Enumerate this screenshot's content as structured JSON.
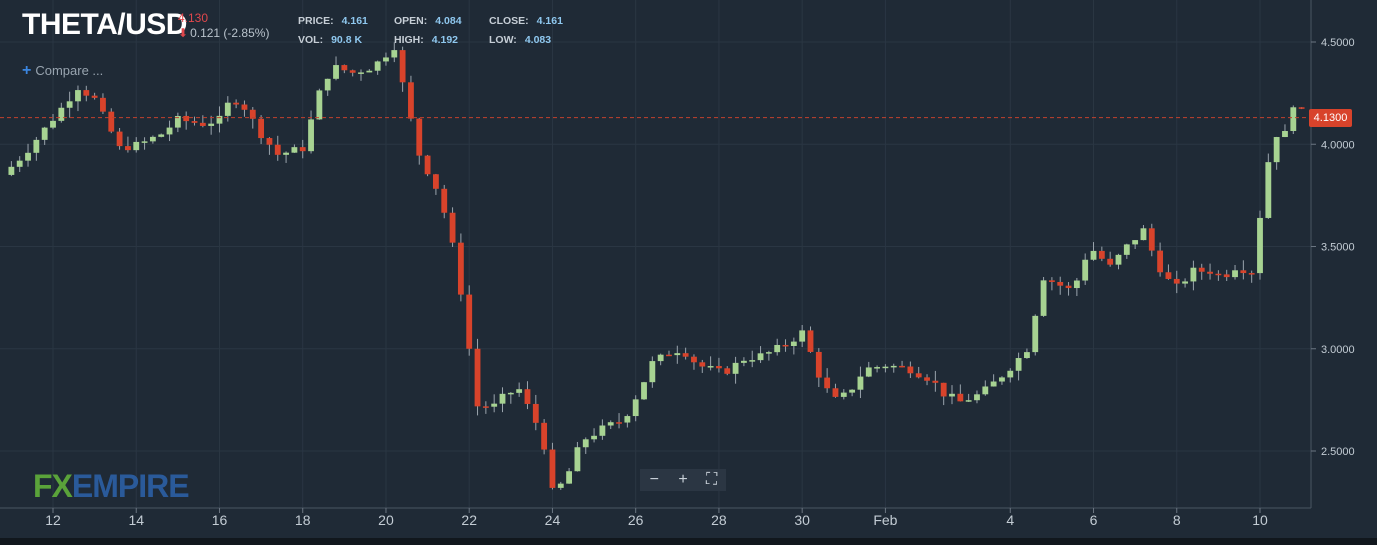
{
  "header": {
    "symbol": "THETA/USD",
    "change_price": "4.130",
    "change_value": "0.121 (-2.85%)",
    "price_label": "PRICE:",
    "price": "4.161",
    "open_label": "OPEN:",
    "open": "4.084",
    "close_label": "CLOSE:",
    "close": "4.161",
    "vol_label": "VOL:",
    "vol": "90.8 K",
    "high_label": "HIGH:",
    "high": "4.192",
    "low_label": "LOW:",
    "low": "4.083"
  },
  "compare_label": "Compare ...",
  "logo": {
    "fx": "FX",
    "rest": "EMPIRE"
  },
  "zoom": {
    "minus": "−",
    "plus": "+",
    "fit": "⛶"
  },
  "current_price_label": "4.1300",
  "colors": {
    "up": "#a7d392",
    "down": "#d8432b",
    "bg": "#1f2a36",
    "grid": "#2a3643",
    "axis_text": "#c3ccd4"
  },
  "chart_data": {
    "type": "candlestick",
    "title": "THETA/USD",
    "y_ticks": [
      "2.5000",
      "3.0000",
      "3.5000",
      "4.0000",
      "4.5000"
    ],
    "x_ticks": [
      {
        "label": "12",
        "day": 12
      },
      {
        "label": "14",
        "day": 14
      },
      {
        "label": "16",
        "day": 16
      },
      {
        "label": "18",
        "day": 18
      },
      {
        "label": "20",
        "day": 20
      },
      {
        "label": "22",
        "day": 22
      },
      {
        "label": "24",
        "day": 24
      },
      {
        "label": "26",
        "day": 26
      },
      {
        "label": "28",
        "day": 28
      },
      {
        "label": "30",
        "day": 30
      },
      {
        "label": "Feb",
        "day": 32
      },
      {
        "label": "4",
        "day": 35
      },
      {
        "label": "6",
        "day": 37
      },
      {
        "label": "8",
        "day": 39
      },
      {
        "label": "10",
        "day": 41
      }
    ],
    "ylim": [
      2.22,
      4.75
    ],
    "xlim": [
      11,
      42.3
    ],
    "current_price": 4.13,
    "keyframes": [
      [
        11.0,
        3.85
      ],
      [
        11.5,
        3.95
      ],
      [
        11.9,
        4.05
      ],
      [
        12.3,
        4.15
      ],
      [
        12.8,
        4.28
      ],
      [
        13.2,
        4.22
      ],
      [
        13.5,
        4.1
      ],
      [
        13.8,
        3.98
      ],
      [
        14.3,
        4.0
      ],
      [
        14.8,
        4.05
      ],
      [
        15.2,
        4.12
      ],
      [
        15.8,
        4.1
      ],
      [
        16.2,
        4.12
      ],
      [
        16.5,
        4.23
      ],
      [
        16.8,
        4.18
      ],
      [
        17.2,
        4.05
      ],
      [
        17.6,
        3.95
      ],
      [
        18.2,
        3.98
      ],
      [
        18.6,
        4.25
      ],
      [
        18.9,
        4.38
      ],
      [
        19.4,
        4.35
      ],
      [
        19.9,
        4.38
      ],
      [
        20.4,
        4.48
      ],
      [
        20.7,
        4.2
      ],
      [
        21.0,
        3.95
      ],
      [
        21.5,
        3.75
      ],
      [
        21.9,
        3.42
      ],
      [
        22.2,
        3.0
      ],
      [
        22.4,
        2.72
      ],
      [
        22.8,
        2.72
      ],
      [
        23.1,
        2.78
      ],
      [
        23.4,
        2.8
      ],
      [
        23.7,
        2.68
      ],
      [
        23.9,
        2.6
      ],
      [
        24.1,
        2.45
      ],
      [
        24.2,
        2.3
      ],
      [
        24.5,
        2.35
      ],
      [
        24.9,
        2.55
      ],
      [
        25.5,
        2.62
      ],
      [
        25.9,
        2.65
      ],
      [
        26.3,
        2.8
      ],
      [
        26.6,
        2.93
      ],
      [
        27.0,
        2.98
      ],
      [
        27.3,
        3.0
      ],
      [
        27.7,
        2.92
      ],
      [
        28.3,
        2.88
      ],
      [
        28.8,
        2.95
      ],
      [
        29.3,
        2.97
      ],
      [
        29.8,
        3.02
      ],
      [
        30.2,
        3.08
      ],
      [
        30.4,
        2.98
      ],
      [
        30.7,
        2.82
      ],
      [
        31.0,
        2.75
      ],
      [
        31.3,
        2.78
      ],
      [
        31.7,
        2.9
      ],
      [
        32.2,
        2.92
      ],
      [
        32.8,
        2.9
      ],
      [
        33.3,
        2.85
      ],
      [
        33.6,
        2.78
      ],
      [
        34.0,
        2.74
      ],
      [
        34.5,
        2.78
      ],
      [
        34.9,
        2.85
      ],
      [
        35.3,
        2.93
      ],
      [
        35.6,
        3.0
      ],
      [
        36.0,
        3.35
      ],
      [
        36.5,
        3.3
      ],
      [
        36.7,
        3.28
      ],
      [
        37.1,
        3.5
      ],
      [
        37.6,
        3.4
      ],
      [
        38.0,
        3.5
      ],
      [
        38.4,
        3.58
      ],
      [
        38.6,
        3.48
      ],
      [
        38.9,
        3.35
      ],
      [
        39.2,
        3.3
      ],
      [
        39.6,
        3.38
      ],
      [
        40.0,
        3.38
      ],
      [
        40.3,
        3.35
      ],
      [
        40.6,
        3.4
      ],
      [
        41.0,
        3.38
      ],
      [
        41.2,
        3.65
      ],
      [
        41.5,
        4.05
      ],
      [
        41.8,
        4.05
      ],
      [
        42.0,
        4.2
      ],
      [
        42.3,
        4.13
      ]
    ]
  }
}
